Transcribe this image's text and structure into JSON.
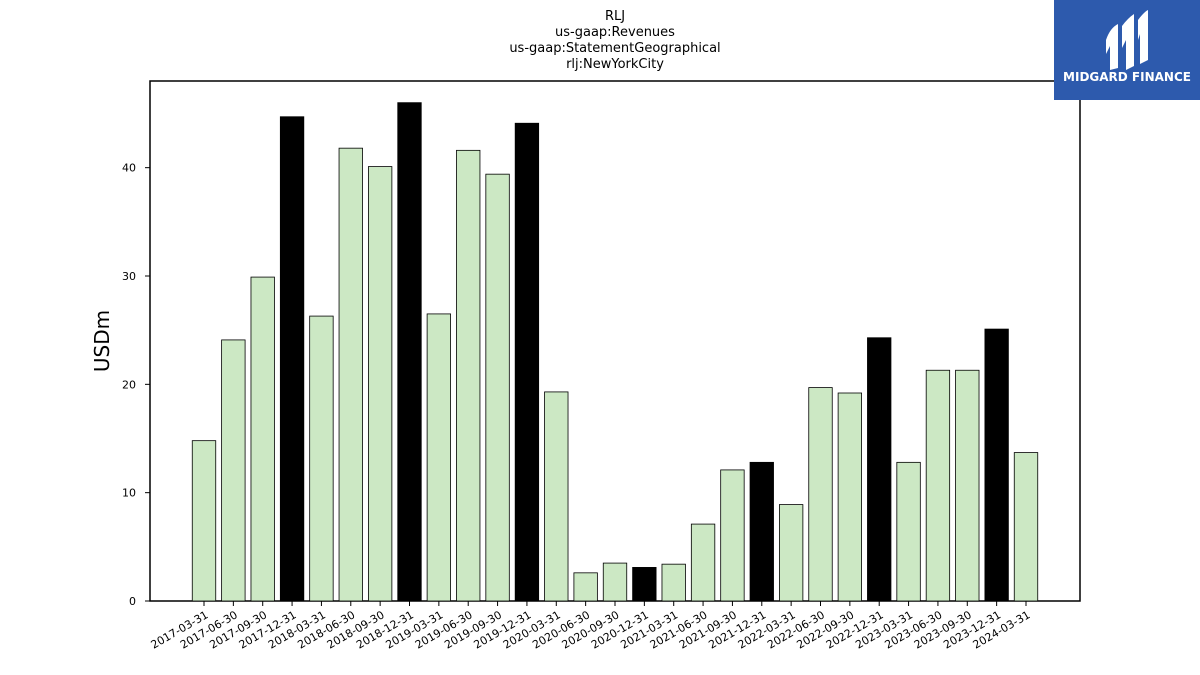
{
  "chart_data": {
    "type": "bar",
    "title_lines": [
      "RLJ",
      "us-gaap:Revenues",
      "us-gaap:StatementGeographical",
      "rlj:NewYorkCity"
    ],
    "xlabel": "",
    "ylabel": "USDm",
    "ylim": [
      0,
      48
    ],
    "yticks": [
      0,
      10,
      20,
      30,
      40
    ],
    "grid": false,
    "categories": [
      "2017-03-31",
      "2017-06-30",
      "2017-09-30",
      "2017-12-31",
      "2018-03-31",
      "2018-06-30",
      "2018-09-30",
      "2018-12-31",
      "2019-03-31",
      "2019-06-30",
      "2019-09-30",
      "2019-12-31",
      "2020-03-31",
      "2020-06-30",
      "2020-09-30",
      "2020-12-31",
      "2021-03-31",
      "2021-06-30",
      "2021-09-30",
      "2021-12-31",
      "2022-03-31",
      "2022-06-30",
      "2022-09-30",
      "2022-12-31",
      "2023-03-31",
      "2023-06-30",
      "2023-09-30",
      "2023-12-31",
      "2024-03-31"
    ],
    "values": [
      14.8,
      24.1,
      29.9,
      44.7,
      26.3,
      41.8,
      40.1,
      46.0,
      26.5,
      41.6,
      39.4,
      44.1,
      19.3,
      2.6,
      3.5,
      3.1,
      3.4,
      7.1,
      12.1,
      12.8,
      8.9,
      19.7,
      19.2,
      24.3,
      12.8,
      21.3,
      21.3,
      25.1,
      13.7
    ],
    "bar_colors": [
      "#cce8c4",
      "#cce8c4",
      "#cce8c4",
      "#000000",
      "#cce8c4",
      "#cce8c4",
      "#cce8c4",
      "#000000",
      "#cce8c4",
      "#cce8c4",
      "#cce8c4",
      "#000000",
      "#cce8c4",
      "#cce8c4",
      "#cce8c4",
      "#000000",
      "#cce8c4",
      "#cce8c4",
      "#cce8c4",
      "#000000",
      "#cce8c4",
      "#cce8c4",
      "#cce8c4",
      "#000000",
      "#cce8c4",
      "#cce8c4",
      "#cce8c4",
      "#000000",
      "#cce8c4"
    ]
  },
  "logo": {
    "text": "MIDGARD FINANCE",
    "background": "#2d5aad"
  }
}
